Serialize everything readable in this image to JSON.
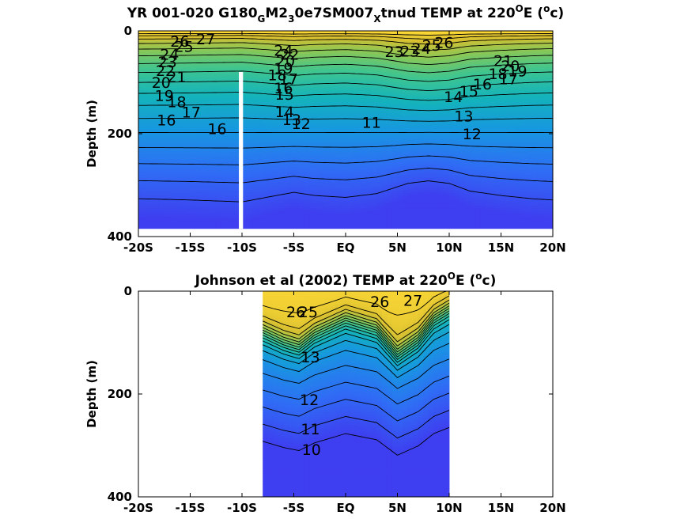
{
  "chart_data": [
    {
      "type": "contour",
      "title_parts": {
        "a": "YR 001-020 G180",
        "b": "G",
        "c": "M2",
        "d": "3",
        "e": "0e7SM007",
        "f": "X",
        "g": "tnud TEMP at 220",
        "h": "O",
        "i": "E (",
        "j": "o",
        "k": "c)"
      },
      "ylabel": "Depth (m)",
      "x_ticks": [
        "-20S",
        "-15S",
        "-10S",
        "-5S",
        "EQ",
        "5N",
        "10N",
        "15N",
        "20N"
      ],
      "x_tick_values": [
        -20,
        -15,
        -10,
        -5,
        0,
        5,
        10,
        15,
        20
      ],
      "y_ticks": [
        "0",
        "200",
        "400"
      ],
      "y_tick_values": [
        0,
        200,
        400
      ],
      "xlim": [
        -20,
        20
      ],
      "ylim": [
        0,
        400
      ],
      "y_reversed": true,
      "data_xlim": [
        -20,
        20
      ],
      "data_depth_max": 385,
      "gap_x": [
        -10.3,
        -9.9
      ],
      "gap_depth_start": 80,
      "colormap": [
        "#3e3ff0",
        "#2f6df5",
        "#1797e0",
        "#14b3bb",
        "#3fc58f",
        "#8cc755",
        "#d7bf30",
        "#fdd835"
      ],
      "vmin": 10,
      "vmax": 28,
      "contour_levels": [
        11,
        12,
        13,
        14,
        15,
        16,
        17,
        18,
        19,
        20,
        21,
        22,
        23,
        24,
        25,
        26,
        27
      ],
      "model": "isotherm_depths",
      "isotherm_depth_profile": {
        "x": [
          -20,
          -15,
          -10,
          -7,
          -5,
          -3,
          0,
          3,
          6,
          8,
          10,
          12,
          15,
          18,
          20
        ],
        "shape": [
          0.6,
          0.62,
          0.65,
          0.56,
          0.5,
          0.55,
          0.58,
          0.52,
          0.36,
          0.32,
          0.36,
          0.48,
          0.55,
          0.6,
          0.62
        ]
      },
      "annotations": [
        {
          "text": "27",
          "x": -13.5,
          "y": 15
        },
        {
          "text": "26",
          "x": -16,
          "y": 20
        },
        {
          "text": "25",
          "x": -15.6,
          "y": 30
        },
        {
          "text": "24",
          "x": -17,
          "y": 45
        },
        {
          "text": "23",
          "x": -17.2,
          "y": 60
        },
        {
          "text": "22",
          "x": -17.4,
          "y": 77
        },
        {
          "text": "21",
          "x": -16.3,
          "y": 89
        },
        {
          "text": "20",
          "x": -17.8,
          "y": 100
        },
        {
          "text": "19",
          "x": -17.5,
          "y": 125
        },
        {
          "text": "18",
          "x": -16.3,
          "y": 138
        },
        {
          "text": "17",
          "x": -14.9,
          "y": 158
        },
        {
          "text": "16",
          "x": -17.3,
          "y": 173
        },
        {
          "text": "16",
          "x": -12.4,
          "y": 190
        },
        {
          "text": "24",
          "x": -6,
          "y": 38
        },
        {
          "text": "22",
          "x": -5.4,
          "y": 45
        },
        {
          "text": "20",
          "x": -5.8,
          "y": 58
        },
        {
          "text": "19",
          "x": -6,
          "y": 72
        },
        {
          "text": "18",
          "x": -6.6,
          "y": 85
        },
        {
          "text": "17",
          "x": -5.5,
          "y": 93
        },
        {
          "text": "16",
          "x": -6,
          "y": 111
        },
        {
          "text": "15",
          "x": -5.9,
          "y": 123
        },
        {
          "text": "14",
          "x": -5.9,
          "y": 157
        },
        {
          "text": "13",
          "x": -5.2,
          "y": 172
        },
        {
          "text": "12",
          "x": -4.3,
          "y": 180
        },
        {
          "text": "11",
          "x": 2.5,
          "y": 178
        },
        {
          "text": "26",
          "x": 9.5,
          "y": 22
        },
        {
          "text": "25",
          "x": 8.3,
          "y": 28
        },
        {
          "text": "24",
          "x": 7.3,
          "y": 34
        },
        {
          "text": "23",
          "x": 6.2,
          "y": 39
        },
        {
          "text": "23",
          "x": 4.7,
          "y": 40
        },
        {
          "text": "21",
          "x": 15.2,
          "y": 58
        },
        {
          "text": "20",
          "x": 15.9,
          "y": 68
        },
        {
          "text": "19",
          "x": 16.6,
          "y": 78
        },
        {
          "text": "18",
          "x": 14.7,
          "y": 83
        },
        {
          "text": "17",
          "x": 15.7,
          "y": 93
        },
        {
          "text": "16",
          "x": 13.2,
          "y": 103
        },
        {
          "text": "15",
          "x": 11.9,
          "y": 117
        },
        {
          "text": "14",
          "x": 10.4,
          "y": 128
        },
        {
          "text": "13",
          "x": 11.4,
          "y": 165
        },
        {
          "text": "12",
          "x": 12.2,
          "y": 200
        }
      ]
    },
    {
      "type": "contour",
      "title_parts": {
        "a": "Johnson et al (2002) TEMP at 220",
        "h": "O",
        "i": "E (",
        "j": "o",
        "k": "c)"
      },
      "ylabel": "Depth (m)",
      "x_ticks": [
        "-20S",
        "-15S",
        "-10S",
        "-5S",
        "EQ",
        "5N",
        "10N",
        "15N",
        "20N"
      ],
      "x_tick_values": [
        -20,
        -15,
        -10,
        -5,
        0,
        5,
        10,
        15,
        20
      ],
      "y_ticks": [
        "0",
        "200",
        "400"
      ],
      "y_tick_values": [
        0,
        200,
        400
      ],
      "xlim": [
        -20,
        20
      ],
      "ylim": [
        0,
        400
      ],
      "y_reversed": true,
      "data_xlim": [
        -8,
        10
      ],
      "data_depth_max": 400,
      "colormap": [
        "#3e3ff0",
        "#2f6df5",
        "#1797e0",
        "#14b3bb",
        "#3fc58f",
        "#8cc755",
        "#d7bf30",
        "#fdd835"
      ],
      "vmin": 10,
      "vmax": 28,
      "contour_levels": [
        10,
        11,
        12,
        13,
        14,
        15,
        16,
        17,
        18,
        19,
        20,
        21,
        22,
        23,
        24,
        25,
        26,
        27
      ],
      "model": "thermocline",
      "thermocline_profile": {
        "x": [
          -8,
          -6,
          -4.5,
          -3,
          0,
          3,
          5,
          7,
          8.5,
          10
        ],
        "depth": [
          80,
          100,
          110,
          85,
          55,
          75,
          125,
          95,
          55,
          35
        ]
      },
      "annotations": [
        {
          "text": "27",
          "x": 6.5,
          "y": 18
        },
        {
          "text": "26",
          "x": 3.3,
          "y": 20
        },
        {
          "text": "26",
          "x": -4.8,
          "y": 40
        },
        {
          "text": "25",
          "x": -3.6,
          "y": 40
        },
        {
          "text": "13",
          "x": -3.4,
          "y": 128
        },
        {
          "text": "12",
          "x": -3.5,
          "y": 211
        },
        {
          "text": "11",
          "x": -3.4,
          "y": 268
        },
        {
          "text": "10",
          "x": -3.3,
          "y": 308
        }
      ]
    }
  ]
}
